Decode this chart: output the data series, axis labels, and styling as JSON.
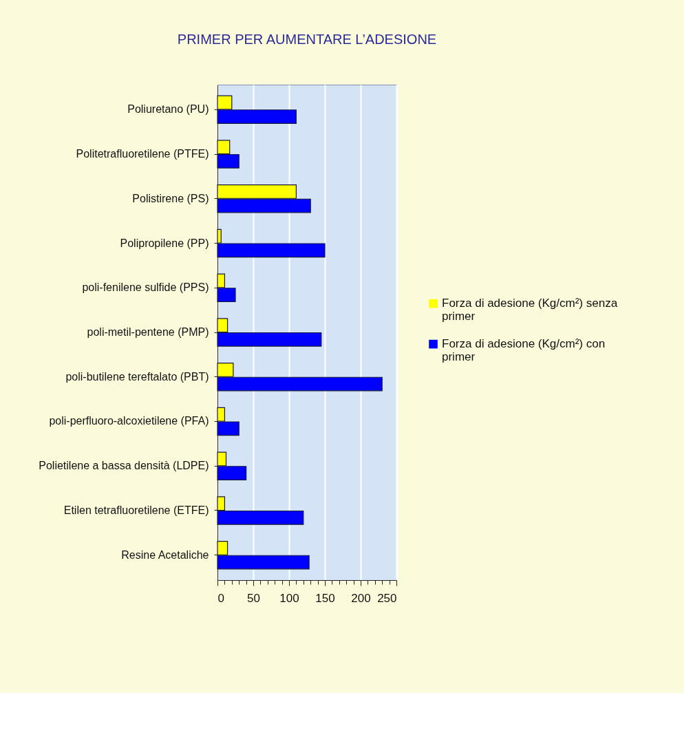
{
  "chart_data": {
    "type": "bar",
    "orientation": "horizontal",
    "title": "PRIMER PER AUMENTARE L’ADESIONE",
    "categories": [
      "Poliuretano (PU)",
      "Politetrafluoretilene (PTFE)",
      "Polistirene (PS)",
      "Polipropilene (PP)",
      "poli-fenilene sulfide (PPS)",
      "poli-metil-pentene (PMP)",
      "poli-butilene tereftalato (PBT)",
      "poli-perfluoro-alcoxietilene (PFA)",
      "Polietilene a bassa densità (LDPE)",
      "Etilen tetrafluoretilene (ETFE)",
      "Resine Acetaliche"
    ],
    "series": [
      {
        "name": "Forza di adesione (Kg/cm²) senza primer",
        "color": "#ffff00",
        "values": [
          20,
          17,
          110,
          5,
          10,
          14,
          22,
          10,
          12,
          10,
          14
        ]
      },
      {
        "name": "Forza di adesione (Kg/cm²) con primer",
        "color": "#0000ff",
        "values": [
          110,
          30,
          130,
          150,
          25,
          145,
          230,
          30,
          40,
          120,
          128
        ]
      }
    ],
    "xlim": [
      0,
      250
    ],
    "xticks": [
      0,
      {
        "value": 10,
        "label": null
      },
      {
        "value": 20,
        "label": null
      },
      {
        "value": 30,
        "label": null
      },
      {
        "value": 40,
        "label": null
      },
      50,
      {
        "value": 60,
        "label": null
      },
      {
        "value": 70,
        "label": null
      },
      {
        "value": 80,
        "label": null
      },
      {
        "value": 90,
        "label": null
      },
      100,
      {
        "value": 110,
        "label": null
      },
      {
        "value": 120,
        "label": null
      },
      {
        "value": 130,
        "label": null
      },
      {
        "value": 140,
        "label": null
      },
      150,
      {
        "value": 160,
        "label": null
      },
      {
        "value": 170,
        "label": null
      },
      {
        "value": 180,
        "label": null
      },
      {
        "value": 190,
        "label": null
      },
      200,
      {
        "value": 210,
        "label": null
      },
      {
        "value": 220,
        "label": null
      },
      {
        "value": 230,
        "label": null
      },
      {
        "value": 240,
        "label": null
      },
      250
    ],
    "grid": "x",
    "legend": "right"
  }
}
